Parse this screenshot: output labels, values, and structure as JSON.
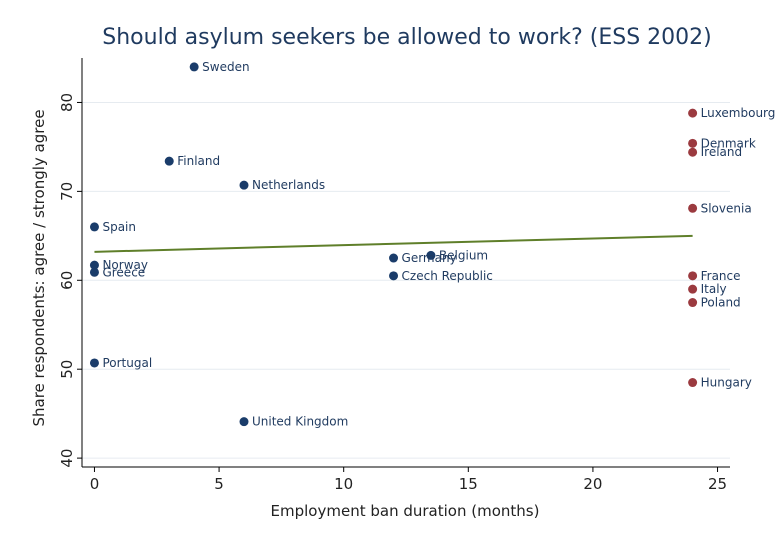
{
  "chart_data": {
    "type": "scatter",
    "title": "Should asylum seekers be allowed to work? (ESS 2002)",
    "xlabel": "Employment ban duration (months)",
    "ylabel": "Share respondents: agree / strongly agree",
    "xlim": [
      -0.5,
      25.5
    ],
    "ylim": [
      39,
      85
    ],
    "xticks": [
      0,
      5,
      10,
      15,
      20,
      25
    ],
    "yticks": [
      40,
      50,
      60,
      70,
      80
    ],
    "grid": true,
    "colors": {
      "group_a": "#1a3c6a",
      "group_b": "#9b3a3f",
      "fit": "#5f7f2a"
    },
    "fit_line": {
      "x": [
        0,
        24
      ],
      "y": [
        63.2,
        65.0
      ]
    },
    "points": [
      {
        "label": "Sweden",
        "x": 4,
        "y": 84,
        "group": "group_a"
      },
      {
        "label": "Finland",
        "x": 3,
        "y": 73.4,
        "group": "group_a"
      },
      {
        "label": "Netherlands",
        "x": 6,
        "y": 70.7,
        "group": "group_a"
      },
      {
        "label": "Spain",
        "x": 0,
        "y": 66,
        "group": "group_a"
      },
      {
        "label": "Norway",
        "x": 0,
        "y": 61.7,
        "group": "group_a"
      },
      {
        "label": "Greece",
        "x": 0,
        "y": 60.9,
        "group": "group_a"
      },
      {
        "label": "Portugal",
        "x": 0,
        "y": 50.7,
        "group": "group_a"
      },
      {
        "label": "United Kingdom",
        "x": 6,
        "y": 44.1,
        "group": "group_a"
      },
      {
        "label": "Germany",
        "x": 12,
        "y": 62.5,
        "group": "group_a"
      },
      {
        "label": "Belgium",
        "x": 13.5,
        "y": 62.8,
        "group": "group_a"
      },
      {
        "label": "Czech Republic",
        "x": 12,
        "y": 60.5,
        "group": "group_a"
      },
      {
        "label": "Luxembourg",
        "x": 24,
        "y": 78.8,
        "group": "group_b"
      },
      {
        "label": "Denmark",
        "x": 24,
        "y": 75.4,
        "group": "group_b"
      },
      {
        "label": "Ireland",
        "x": 24,
        "y": 74.4,
        "group": "group_b"
      },
      {
        "label": "Slovenia",
        "x": 24,
        "y": 68.1,
        "group": "group_b"
      },
      {
        "label": "France",
        "x": 24,
        "y": 60.5,
        "group": "group_b"
      },
      {
        "label": "Italy",
        "x": 24,
        "y": 59,
        "group": "group_b"
      },
      {
        "label": "Poland",
        "x": 24,
        "y": 57.5,
        "group": "group_b"
      },
      {
        "label": "Hungary",
        "x": 24,
        "y": 48.5,
        "group": "group_b"
      }
    ]
  }
}
